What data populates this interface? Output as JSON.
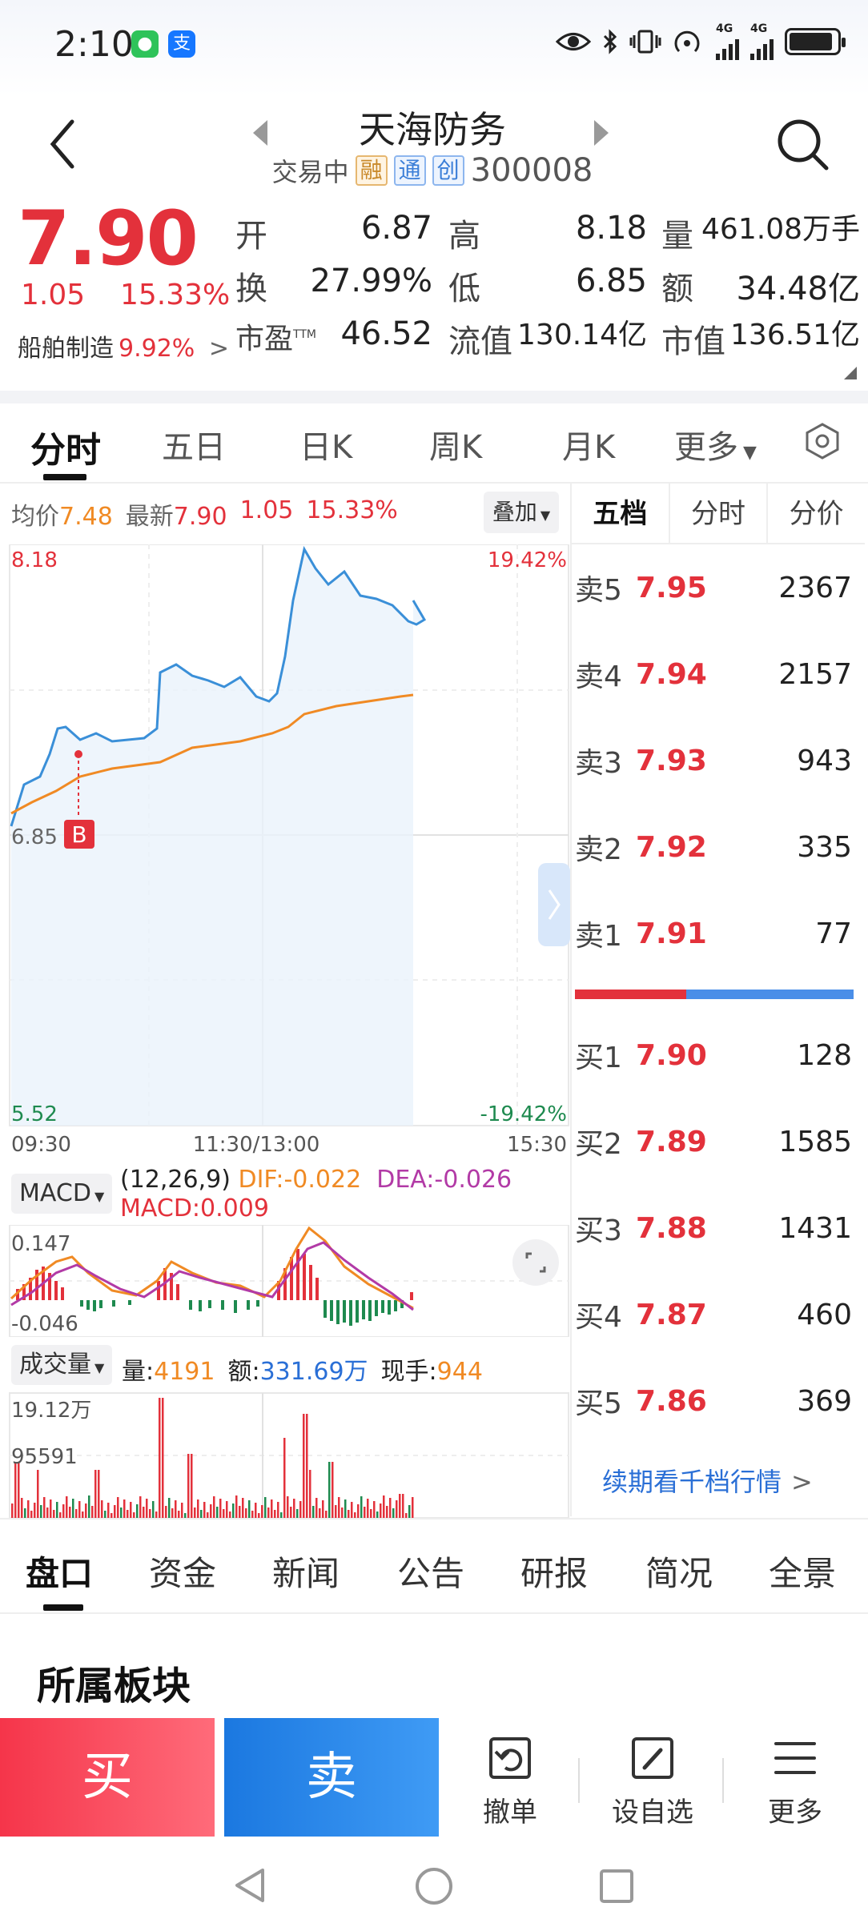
{
  "status_bar": {
    "time": "2:10",
    "wechat_icon": "wechat-icon",
    "alipay_char": "支",
    "net_1": "4G",
    "net_2": "4G"
  },
  "header": {
    "stock_name": "天海防务",
    "trading_status": "交易中",
    "tags": [
      "融",
      "通",
      "创"
    ],
    "code": "300008"
  },
  "quote": {
    "price": "7.90",
    "change": "1.05",
    "change_pct": "15.33%",
    "sector_name": "船舶制造",
    "sector_pct": "9.92%",
    "sector_arrow": ">",
    "open_label": "开",
    "open": "6.87",
    "high_label": "高",
    "high": "8.18",
    "volume_label": "量",
    "volume": "461.08万手",
    "turnover_label": "换",
    "turnover": "27.99%",
    "low_label": "低",
    "low": "6.85",
    "amount_label": "额",
    "amount": "34.48亿",
    "pe_label": "市盈",
    "pe_sup": "TTM",
    "pe": "46.52",
    "float_cap_label": "流值",
    "float_cap": "130.14亿",
    "mkt_cap_label": "市值",
    "mkt_cap": "136.51亿"
  },
  "period_tabs": [
    "分时",
    "五日",
    "日K",
    "周K",
    "月K",
    "更多"
  ],
  "chart": {
    "avg_label": "均价",
    "avg_price": "7.48",
    "latest_label": "最新",
    "latest_price": "7.90",
    "latest_change": "1.05",
    "latest_pct": "15.33%",
    "overlay_label": "叠加",
    "y_top": "8.18",
    "y_top_pct": "19.42%",
    "y_ref": "6.85",
    "y_bottom": "5.52",
    "y_bottom_pct": "-19.42%",
    "x_start": "09:30",
    "x_mid": "11:30/13:00",
    "x_end": "15:30",
    "buy_marker": "B"
  },
  "macd": {
    "select_label": "MACD",
    "params": "(12,26,9)",
    "dif": "DIF:-0.022",
    "dea": "DEA:-0.026",
    "macd": "MACD:0.009",
    "y_top": "0.147",
    "y_bottom": "-0.046"
  },
  "volume": {
    "select_label": "成交量",
    "vol_label": "量:",
    "vol": "4191",
    "amt_label": "额:",
    "amt": "331.69万",
    "hand_label": "现手:",
    "hand": "944",
    "y_top": "19.12万",
    "y_mid": "95591"
  },
  "order_book": {
    "tabs": [
      "五档",
      "分时",
      "分价"
    ],
    "asks": [
      {
        "label": "卖5",
        "price": "7.95",
        "vol": "2367"
      },
      {
        "label": "卖4",
        "price": "7.94",
        "vol": "2157"
      },
      {
        "label": "卖3",
        "price": "7.93",
        "vol": "943"
      },
      {
        "label": "卖2",
        "price": "7.92",
        "vol": "335"
      },
      {
        "label": "卖1",
        "price": "7.91",
        "vol": "77"
      }
    ],
    "bids": [
      {
        "label": "买1",
        "price": "7.90",
        "vol": "128"
      },
      {
        "label": "买2",
        "price": "7.89",
        "vol": "1585"
      },
      {
        "label": "买3",
        "price": "7.88",
        "vol": "1431"
      },
      {
        "label": "买4",
        "price": "7.87",
        "vol": "460"
      },
      {
        "label": "买5",
        "price": "7.86",
        "vol": "369"
      }
    ],
    "more_link": "续期看千档行情"
  },
  "bottom_tabs": [
    "盘口",
    "资金",
    "新闻",
    "公告",
    "研报",
    "简况",
    "全景"
  ],
  "section_title": "所属板块",
  "actions": {
    "buy": "买",
    "sell": "卖",
    "cancel": "撤单",
    "watchlist": "设自选",
    "more": "更多"
  },
  "colors": {
    "up": "#e3313b",
    "down": "#1e8a4f",
    "price_line": "#3a8fd8",
    "avg_line": "#f08a24",
    "buy_btn": "#f5354a",
    "sell_btn": "#1b78e0"
  }
}
